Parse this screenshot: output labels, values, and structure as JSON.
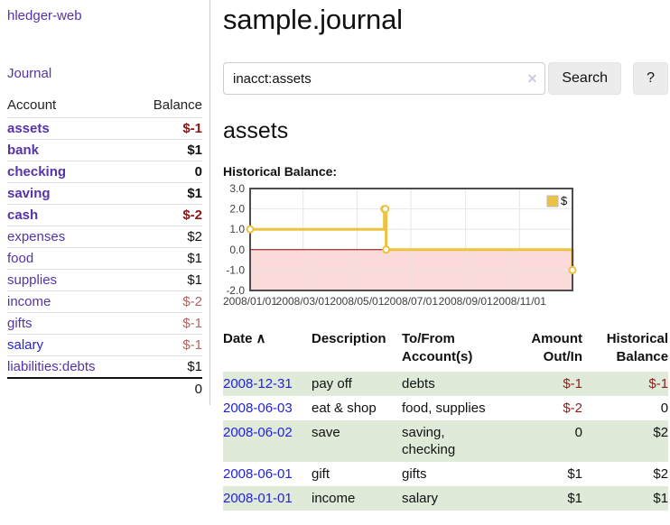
{
  "app": {
    "brand": "hledger-web"
  },
  "sidebar": {
    "journal_link": "Journal",
    "accounts_table": {
      "headers": {
        "account": "Account",
        "balance": "Balance"
      },
      "accounts": [
        {
          "name": "assets",
          "depth": 1,
          "bold": true,
          "balance": "$-1",
          "balance_style": "neg-strong"
        },
        {
          "name": "bank",
          "depth": 2,
          "bold": true,
          "balance": "$1",
          "balance_style": "pos"
        },
        {
          "name": "checking",
          "depth": 3,
          "bold": true,
          "balance": "0",
          "balance_style": "pos"
        },
        {
          "name": "saving",
          "depth": 3,
          "bold": true,
          "balance": "$1",
          "balance_style": "pos"
        },
        {
          "name": "cash",
          "depth": 2,
          "bold": true,
          "balance": "$-2",
          "balance_style": "neg-strong"
        },
        {
          "name": "expenses",
          "depth": 1,
          "bold": false,
          "balance": "$2",
          "balance_style": "pos"
        },
        {
          "name": "food",
          "depth": 2,
          "bold": false,
          "balance": "$1",
          "balance_style": "pos"
        },
        {
          "name": "supplies",
          "depth": 2,
          "bold": false,
          "balance": "$1",
          "balance_style": "pos"
        },
        {
          "name": "income",
          "depth": 1,
          "bold": false,
          "balance": "$-2",
          "balance_style": "neg-soft"
        },
        {
          "name": "gifts",
          "depth": 2,
          "bold": false,
          "balance": "$-1",
          "balance_style": "neg-soft"
        },
        {
          "name": "salary",
          "depth": 2,
          "bold": false,
          "balance": "$-1",
          "balance_style": "neg-soft",
          "link_color": "blue"
        },
        {
          "name": "liabilities:debts",
          "depth": 1,
          "bold": false,
          "balance": "$1",
          "balance_style": "pos"
        }
      ],
      "total": "0"
    }
  },
  "header": {
    "title": "sample.journal"
  },
  "search": {
    "value": "inacct:assets",
    "clear_icon": "✕",
    "button_label": "Search",
    "help_label": "?"
  },
  "account_page": {
    "title": "assets",
    "chart_label": "Historical Balance:"
  },
  "chart_data": {
    "type": "line",
    "title": "Historical Balance",
    "x_range": [
      "2008-01-01",
      "2008-12-31"
    ],
    "ylim": [
      -2,
      3
    ],
    "y_ticks": [
      3.0,
      2.0,
      1.0,
      0.0,
      -1.0,
      -2.0
    ],
    "x_ticks": [
      "2008/01/01",
      "2008/03/01",
      "2008/05/01",
      "2008/07/01",
      "2008/09/01",
      "2008/11/01"
    ],
    "grid": true,
    "legend_position": "top-right",
    "series": [
      {
        "name": "$",
        "color": "#edc240",
        "steps": true,
        "points": [
          [
            "2008-01-01",
            1
          ],
          [
            "2008-06-01",
            2
          ],
          [
            "2008-06-02",
            2
          ],
          [
            "2008-06-03",
            0
          ],
          [
            "2008-12-31",
            -1
          ]
        ]
      }
    ],
    "negative_region_color": "#fbdada",
    "zero_line_color": "#8b0000"
  },
  "register": {
    "columns": {
      "date": "Date",
      "sort_icon": "∧",
      "description": "Description",
      "accounts": "To/From Account(s)",
      "amount": "Amount Out/In",
      "balance": "Historical Balance"
    },
    "rows": [
      {
        "date": "2008-12-31",
        "description": "pay off",
        "accounts": "debts",
        "amount": "$-1",
        "amount_neg": true,
        "balance": "$-1",
        "balance_neg": true
      },
      {
        "date": "2008-06-03",
        "description": "eat & shop",
        "accounts": "food, supplies",
        "amount": "$-2",
        "amount_neg": true,
        "balance": "0",
        "balance_neg": false
      },
      {
        "date": "2008-06-02",
        "description": "save",
        "accounts": "saving, checking",
        "amount": "0",
        "amount_neg": false,
        "balance": "$2",
        "balance_neg": false
      },
      {
        "date": "2008-06-01",
        "description": "gift",
        "accounts": "gifts",
        "amount": "$1",
        "amount_neg": false,
        "balance": "$2",
        "balance_neg": false
      },
      {
        "date": "2008-01-01",
        "description": "income",
        "accounts": "salary",
        "amount": "$1",
        "amount_neg": false,
        "balance": "$1",
        "balance_neg": false
      }
    ]
  },
  "colors": {
    "accent_purple": "#5533aa",
    "link_blue": "#2222dd",
    "negative_strong": "#8b1515",
    "negative_soft": "#b56565",
    "row_stripe_green": "#dfead9",
    "chart_line_gold": "#edc240",
    "chart_negative_fill": "#fbdada",
    "chart_zero_line": "#8b0000"
  }
}
